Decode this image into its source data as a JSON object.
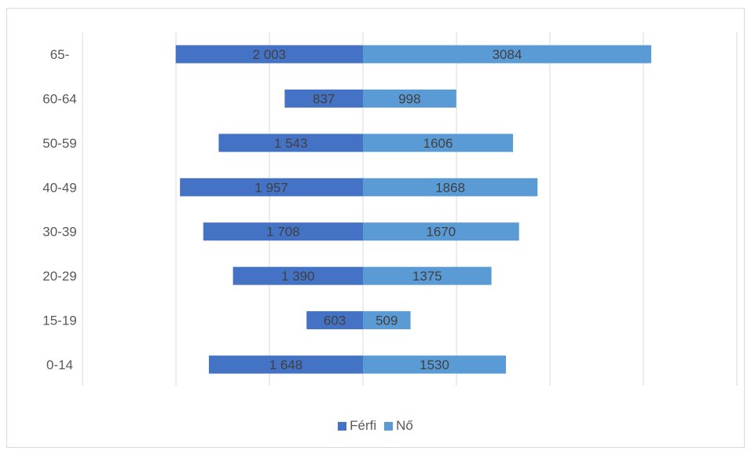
{
  "chart_data": {
    "type": "bar",
    "orientation": "horizontal-population-pyramid",
    "title": "",
    "xlabel": "",
    "ylabel": "",
    "categories": [
      "65-",
      "60-64",
      "50-59",
      "40-49",
      "30-39",
      "20-29",
      "15-19",
      "0-14"
    ],
    "series": [
      {
        "name": "Férfi",
        "color": "#4472c4",
        "values": [
          2003,
          837,
          1543,
          1957,
          1708,
          1390,
          603,
          1648
        ],
        "labels": [
          "2 003",
          "837",
          "1 543",
          "1 957",
          "1 708",
          "1 390",
          "603",
          "1 648"
        ],
        "direction": "left"
      },
      {
        "name": "Nő",
        "color": "#5b9bd5",
        "values": [
          3084,
          998,
          1606,
          1868,
          1670,
          1375,
          509,
          1530
        ],
        "labels": [
          "3084",
          "998",
          "1606",
          "1868",
          "1670",
          "1375",
          "509",
          "1530"
        ],
        "direction": "right"
      }
    ],
    "xlim": [
      -3000,
      4000
    ],
    "grid": true,
    "legend_position": "bottom"
  }
}
